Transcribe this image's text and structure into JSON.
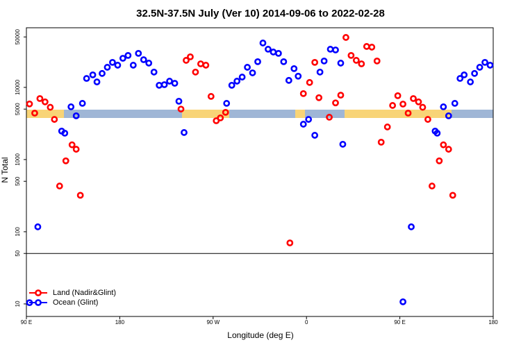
{
  "chart_data": {
    "type": "scatter",
    "title": "32.5N-37.5N July (Ver 10)   2014-09-06 to 2022-02-28",
    "x_label": "Longitude (deg E)",
    "y_label": "N Total",
    "xlim": [
      90,
      540
    ],
    "ylim": [
      6.7,
      67000
    ],
    "ylog": true,
    "hline": 50,
    "legend": "bottom-left",
    "xticks": [
      {
        "value": 90,
        "label": "90 E"
      },
      180,
      {
        "value": 270,
        "label": "90 W"
      },
      {
        "value": 360,
        "label": "0"
      },
      {
        "value": 450,
        "label": "90 E"
      },
      {
        "value": 540,
        "label": "180"
      }
    ],
    "yticks": [
      10,
      50,
      100,
      500,
      1000,
      5000,
      10000,
      50000
    ],
    "series": [
      {
        "name": "Land (Nadir&Glint)",
        "color": "#ff0000",
        "x": [
          93,
          98,
          103,
          108,
          113,
          117,
          122,
          128,
          134,
          138,
          142,
          239,
          244,
          248,
          253,
          258,
          263,
          268,
          273,
          277,
          282,
          344,
          357,
          363,
          368,
          372,
          382,
          388,
          393,
          398,
          403,
          408,
          413,
          418,
          423,
          428,
          432,
          438,
          443,
          448,
          453,
          458,
          463,
          468,
          472,
          477,
          481,
          488,
          492,
          497,
          501
        ],
        "values": [
          5900,
          4400,
          7000,
          6300,
          5300,
          3600,
          430,
          960,
          1600,
          1390,
          320,
          5000,
          23700,
          26500,
          16300,
          21200,
          20300,
          7500,
          3450,
          3780,
          4510,
          70,
          8200,
          11700,
          22200,
          7200,
          3860,
          6100,
          7800,
          49200,
          27700,
          23700,
          21200,
          36900,
          36100,
          23200,
          1740,
          2830,
          5620,
          7670,
          5870,
          4400,
          7000,
          6300,
          5300,
          3600,
          430,
          960,
          1600,
          1390,
          320
        ]
      },
      {
        "name": "Ocean (Glint)",
        "color": "#0000ff",
        "x": [
          93,
          101,
          124,
          127,
          133,
          138,
          144,
          148,
          154,
          158,
          163,
          168,
          173,
          178,
          183,
          188,
          193,
          198,
          203,
          208,
          213,
          218,
          223,
          228,
          233,
          237,
          242,
          283,
          288,
          293,
          298,
          303,
          308,
          313,
          318,
          323,
          328,
          333,
          338,
          343,
          348,
          352,
          357,
          362,
          368,
          373,
          377,
          383,
          388,
          393,
          395,
          453,
          461,
          484,
          486,
          492,
          497,
          503,
          508,
          512,
          518,
          522,
          527,
          532,
          537
        ],
        "values": [
          10.4,
          117,
          2480,
          2320,
          5380,
          4040,
          6010,
          13300,
          14900,
          11900,
          15600,
          19000,
          22200,
          20300,
          25300,
          27700,
          20300,
          29600,
          24200,
          21700,
          16300,
          10700,
          10900,
          12200,
          11400,
          6430,
          2370,
          6010,
          10700,
          12200,
          13900,
          19000,
          15900,
          22700,
          41200,
          33800,
          30900,
          29600,
          22700,
          12500,
          18200,
          14300,
          3090,
          3600,
          2170,
          16300,
          23200,
          33800,
          33000,
          21700,
          1630,
          10.7,
          117,
          2480,
          2320,
          5380,
          4040,
          6010,
          13300,
          14900,
          11900,
          15600,
          19000,
          22200,
          20300
        ]
      }
    ]
  }
}
